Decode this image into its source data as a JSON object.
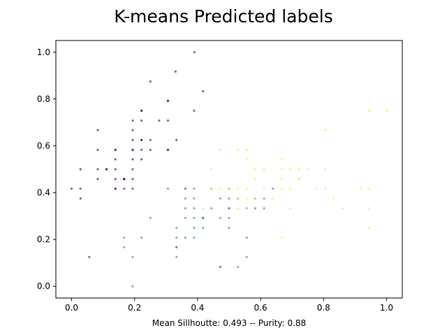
{
  "chart_data": {
    "type": "scatter",
    "title": "K-means Predicted labels",
    "xlabel": "Mean Sillhoutte: 0.493 -- Purity: 0.88",
    "ylabel": "",
    "xlim": [
      -0.05,
      1.05
    ],
    "ylim": [
      -0.05,
      1.05
    ],
    "xticks": [
      "0.0",
      "0.2",
      "0.4",
      "0.6",
      "0.8",
      "1.0"
    ],
    "yticks": [
      "0.0",
      "0.2",
      "0.4",
      "0.6",
      "0.8",
      "1.0"
    ],
    "grid": false,
    "colors": {
      "purple": "#440154",
      "teal": "#21918c",
      "yellow": "#fde725"
    },
    "series": [
      {
        "color_key": "purple",
        "points": [
          [
            0.39,
            1.0
          ],
          [
            0.33,
            0.917
          ],
          [
            0.25,
            0.875
          ],
          [
            0.417,
            0.833
          ],
          [
            0.306,
            0.792
          ],
          [
            0.306,
            0.792
          ],
          [
            0.222,
            0.75
          ],
          [
            0.222,
            0.75
          ],
          [
            0.389,
            0.75
          ],
          [
            0.194,
            0.708
          ],
          [
            0.222,
            0.708
          ],
          [
            0.278,
            0.708
          ],
          [
            0.306,
            0.708
          ],
          [
            0.083,
            0.667
          ],
          [
            0.194,
            0.667
          ],
          [
            0.194,
            0.625
          ],
          [
            0.222,
            0.625
          ],
          [
            0.222,
            0.625
          ],
          [
            0.25,
            0.625
          ],
          [
            0.333,
            0.625
          ],
          [
            0.083,
            0.583
          ],
          [
            0.139,
            0.583
          ],
          [
            0.139,
            0.583
          ],
          [
            0.194,
            0.583
          ],
          [
            0.194,
            0.583
          ],
          [
            0.222,
            0.583
          ],
          [
            0.25,
            0.583
          ],
          [
            0.306,
            0.583
          ],
          [
            0.306,
            0.583
          ],
          [
            0.139,
            0.542
          ],
          [
            0.194,
            0.542
          ],
          [
            0.222,
            0.542
          ],
          [
            0.028,
            0.5
          ],
          [
            0.083,
            0.5
          ],
          [
            0.111,
            0.5
          ],
          [
            0.111,
            0.5
          ],
          [
            0.139,
            0.5
          ],
          [
            0.194,
            0.5
          ],
          [
            0.083,
            0.458
          ],
          [
            0.139,
            0.458
          ],
          [
            0.167,
            0.458
          ],
          [
            0.167,
            0.458
          ],
          [
            0.167,
            0.458
          ],
          [
            0.194,
            0.458
          ],
          [
            0.0,
            0.417
          ],
          [
            0.028,
            0.417
          ],
          [
            0.139,
            0.417
          ],
          [
            0.139,
            0.417
          ],
          [
            0.167,
            0.417
          ],
          [
            0.194,
            0.417
          ],
          [
            0.028,
            0.375
          ],
          [
            0.056,
            0.125
          ]
        ]
      },
      {
        "color_key": "teal",
        "points": [
          [
            0.306,
            0.417
          ],
          [
            0.361,
            0.417
          ],
          [
            0.361,
            0.417
          ],
          [
            0.389,
            0.417
          ],
          [
            0.444,
            0.417
          ],
          [
            0.5,
            0.417
          ],
          [
            0.361,
            0.375
          ],
          [
            0.389,
            0.375
          ],
          [
            0.472,
            0.375
          ],
          [
            0.5,
            0.375
          ],
          [
            0.528,
            0.375
          ],
          [
            0.583,
            0.375
          ],
          [
            0.611,
            0.375
          ],
          [
            0.639,
            0.417
          ],
          [
            0.361,
            0.333
          ],
          [
            0.389,
            0.333
          ],
          [
            0.444,
            0.333
          ],
          [
            0.5,
            0.333
          ],
          [
            0.5,
            0.333
          ],
          [
            0.556,
            0.333
          ],
          [
            0.583,
            0.333
          ],
          [
            0.611,
            0.333
          ],
          [
            0.361,
            0.292
          ],
          [
            0.389,
            0.292
          ],
          [
            0.417,
            0.292
          ],
          [
            0.417,
            0.292
          ],
          [
            0.472,
            0.292
          ],
          [
            0.5,
            0.292
          ],
          [
            0.25,
            0.292
          ],
          [
            0.333,
            0.25
          ],
          [
            0.389,
            0.25
          ],
          [
            0.417,
            0.25
          ],
          [
            0.5,
            0.25
          ],
          [
            0.167,
            0.208
          ],
          [
            0.222,
            0.208
          ],
          [
            0.333,
            0.208
          ],
          [
            0.361,
            0.208
          ],
          [
            0.389,
            0.208
          ],
          [
            0.556,
            0.208
          ],
          [
            0.167,
            0.167
          ],
          [
            0.333,
            0.167
          ],
          [
            0.333,
            0.167
          ],
          [
            0.194,
            0.125
          ],
          [
            0.333,
            0.125
          ],
          [
            0.556,
            0.125
          ],
          [
            0.472,
            0.083
          ],
          [
            0.472,
            0.083
          ],
          [
            0.528,
            0.083
          ],
          [
            0.194,
            0.0
          ],
          [
            0.417,
            0.292
          ]
        ]
      },
      {
        "color_key": "yellow",
        "points": [
          [
            0.944,
            0.75
          ],
          [
            1.0,
            0.75
          ],
          [
            0.806,
            0.667
          ],
          [
            0.472,
            0.583
          ],
          [
            0.528,
            0.583
          ],
          [
            0.556,
            0.583
          ],
          [
            0.556,
            0.542
          ],
          [
            0.667,
            0.542
          ],
          [
            0.444,
            0.5
          ],
          [
            0.583,
            0.5
          ],
          [
            0.611,
            0.5
          ],
          [
            0.667,
            0.5
          ],
          [
            0.694,
            0.5
          ],
          [
            0.722,
            0.5
          ],
          [
            0.75,
            0.5
          ],
          [
            0.806,
            0.5
          ],
          [
            0.583,
            0.458
          ],
          [
            0.667,
            0.458
          ],
          [
            0.722,
            0.458
          ],
          [
            0.722,
            0.458
          ],
          [
            0.444,
            0.417
          ],
          [
            0.472,
            0.417
          ],
          [
            0.5,
            0.417
          ],
          [
            0.528,
            0.417
          ],
          [
            0.556,
            0.417
          ],
          [
            0.611,
            0.417
          ],
          [
            0.667,
            0.417
          ],
          [
            0.694,
            0.417
          ],
          [
            0.778,
            0.417
          ],
          [
            0.806,
            0.417
          ],
          [
            0.917,
            0.417
          ],
          [
            0.944,
            0.417
          ],
          [
            0.528,
            0.375
          ],
          [
            0.556,
            0.375
          ],
          [
            0.583,
            0.375
          ],
          [
            0.639,
            0.375
          ],
          [
            0.833,
            0.375
          ],
          [
            0.417,
            0.333
          ],
          [
            0.528,
            0.333
          ],
          [
            0.556,
            0.333
          ],
          [
            0.694,
            0.333
          ],
          [
            0.861,
            0.333
          ],
          [
            0.944,
            0.333
          ],
          [
            0.944,
            0.25
          ],
          [
            0.667,
            0.208
          ]
        ]
      }
    ]
  }
}
